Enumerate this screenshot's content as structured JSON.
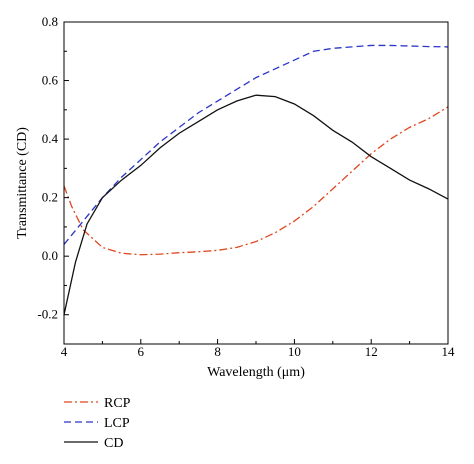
{
  "chart_data": {
    "type": "line",
    "xlabel": "Wavelength (μm)",
    "ylabel": "Transmittance (CD)",
    "xlim": [
      4,
      14
    ],
    "ylim": [
      -0.3,
      0.8
    ],
    "x_ticks": [
      4,
      6,
      8,
      10,
      12,
      14
    ],
    "y_ticks": [
      -0.2,
      0.0,
      0.2,
      0.4,
      0.6,
      0.8
    ],
    "x_tick_labels": [
      "4",
      "6",
      "8",
      "10",
      "12",
      "14"
    ],
    "y_tick_labels": [
      "-0.2",
      "0.0",
      "0.2",
      "0.4",
      "0.6",
      "0.8"
    ],
    "grid": false,
    "legend_position": "bottom-left, below plot",
    "series": [
      {
        "name": "RCP",
        "color": "#e0461f",
        "style": "dash-dot",
        "x": [
          4.0,
          4.2,
          4.5,
          5.0,
          5.5,
          6.0,
          6.5,
          7.0,
          7.5,
          8.0,
          8.5,
          9.0,
          9.5,
          10.0,
          10.5,
          11.0,
          11.5,
          12.0,
          12.5,
          13.0,
          13.5,
          14.0
        ],
        "y": [
          0.24,
          0.17,
          0.09,
          0.03,
          0.01,
          0.005,
          0.007,
          0.012,
          0.015,
          0.02,
          0.03,
          0.05,
          0.08,
          0.12,
          0.17,
          0.23,
          0.29,
          0.35,
          0.4,
          0.44,
          0.47,
          0.51
        ]
      },
      {
        "name": "LCP",
        "color": "#2b35c8",
        "style": "dashed",
        "x": [
          4.0,
          4.5,
          5.0,
          5.5,
          6.0,
          6.5,
          7.0,
          7.5,
          8.0,
          8.5,
          9.0,
          9.5,
          10.0,
          10.5,
          11.0,
          11.5,
          12.0,
          12.5,
          13.0,
          13.5,
          14.0
        ],
        "y": [
          0.04,
          0.12,
          0.2,
          0.27,
          0.33,
          0.39,
          0.44,
          0.49,
          0.53,
          0.57,
          0.61,
          0.64,
          0.67,
          0.7,
          0.71,
          0.715,
          0.72,
          0.72,
          0.718,
          0.716,
          0.715
        ]
      },
      {
        "name": "CD",
        "color": "#111111",
        "style": "solid",
        "x": [
          4.0,
          4.3,
          4.6,
          5.0,
          5.5,
          6.0,
          6.5,
          7.0,
          7.5,
          8.0,
          8.5,
          9.0,
          9.5,
          10.0,
          10.5,
          11.0,
          11.5,
          12.0,
          12.5,
          13.0,
          13.5,
          14.0
        ],
        "y": [
          -0.2,
          -0.02,
          0.11,
          0.2,
          0.26,
          0.31,
          0.37,
          0.42,
          0.46,
          0.5,
          0.53,
          0.55,
          0.545,
          0.52,
          0.48,
          0.43,
          0.39,
          0.34,
          0.3,
          0.26,
          0.23,
          0.195
        ]
      }
    ]
  }
}
